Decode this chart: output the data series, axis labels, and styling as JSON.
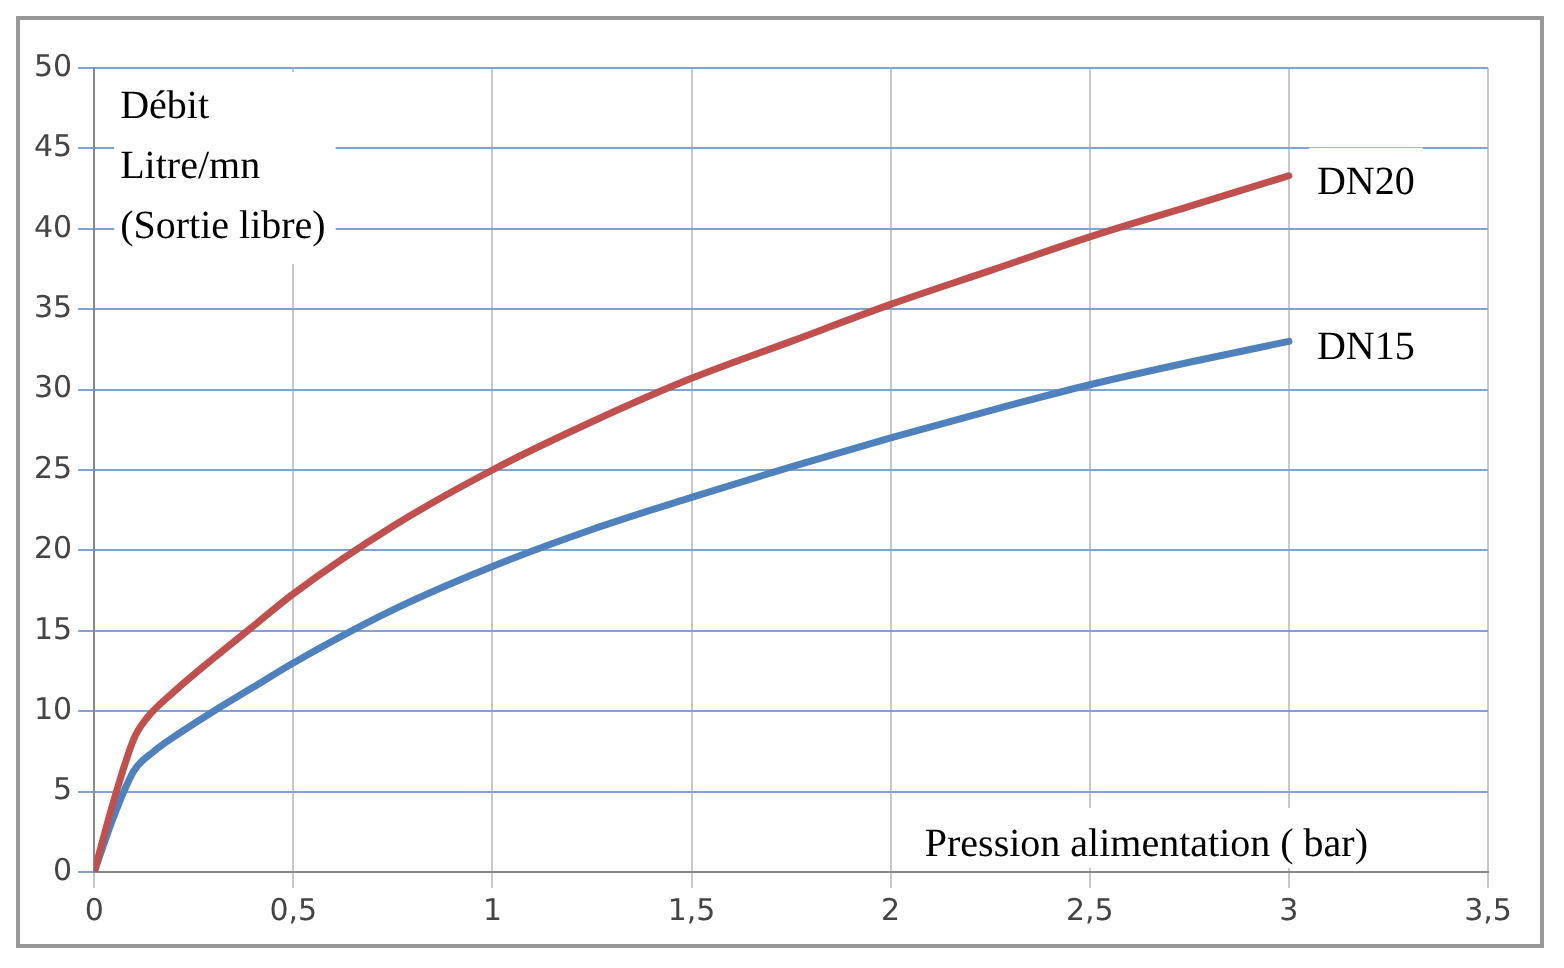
{
  "chart_data": {
    "type": "line",
    "xlabel": "Pression alimentation ( bar)",
    "ylabel": "Débit\nLitre/mn\n(Sortie libre)",
    "xlim": [
      0,
      3.5
    ],
    "xticks": [
      {
        "value": 0,
        "label": "0"
      },
      {
        "value": 0.5,
        "label": "0,5"
      },
      {
        "value": 1,
        "label": "1"
      },
      {
        "value": 1.5,
        "label": "1,5"
      },
      {
        "value": 2,
        "label": "2"
      },
      {
        "value": 2.5,
        "label": "2,5"
      },
      {
        "value": 3,
        "label": "3"
      },
      {
        "value": 3.5,
        "label": "3,5"
      }
    ],
    "ylim": [
      0,
      50
    ],
    "yticks": [
      0,
      5,
      10,
      15,
      20,
      25,
      30,
      35,
      40,
      45,
      50
    ],
    "grid": true,
    "marker": "none",
    "line_style": "solid",
    "legend": false,
    "series": [
      {
        "name": "DN20",
        "color": "#c0504d",
        "x": [
          0,
          0.05,
          0.1,
          0.13,
          0.2,
          0.3,
          0.4,
          0.5,
          0.75,
          1,
          1.25,
          1.5,
          1.75,
          2,
          2.25,
          2.5,
          2.75,
          3
        ],
        "values": [
          0,
          4.5,
          8.3,
          9.5,
          11.2,
          13.3,
          15.3,
          17.3,
          21.5,
          25,
          28,
          30.7,
          33,
          35.3,
          37.4,
          39.5,
          41.4,
          43.3
        ]
      },
      {
        "name": "DN15",
        "color": "#4f81bd",
        "x": [
          0,
          0.05,
          0.1,
          0.15,
          0.2,
          0.3,
          0.4,
          0.5,
          0.75,
          1,
          1.25,
          1.5,
          1.75,
          2,
          2.25,
          2.5,
          2.75,
          3
        ],
        "values": [
          0,
          3.5,
          6.3,
          7.5,
          8.4,
          10,
          11.5,
          13,
          16.3,
          19,
          21.3,
          23.3,
          25.2,
          27,
          28.7,
          30.3,
          31.7,
          33
        ]
      }
    ]
  }
}
